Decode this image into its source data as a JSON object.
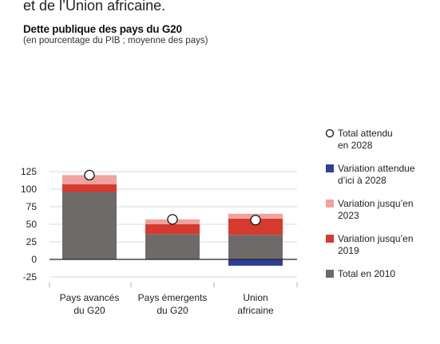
{
  "header": {
    "heading_line": "et de l’Union africaine.",
    "title": "Dette publique des pays du G20",
    "subtitle": "(en pourcentage du PIB ; moyenne des pays)"
  },
  "colors": {
    "total_2010": "#6e6a69",
    "variation_2019": "#d63a2f",
    "variation_2023": "#f0a39c",
    "variation_2028": "#2f3e96",
    "total_2028_marker_fill": "#ffffff",
    "total_2028_marker_stroke": "#111111"
  },
  "chart_data": {
    "type": "bar",
    "stacked": true,
    "categories": [
      [
        "Pays avancés",
        "du G20"
      ],
      [
        "Pays émergents",
        "du G20"
      ],
      [
        "Union",
        "africaine"
      ]
    ],
    "ylim": [
      -25,
      125
    ],
    "yticks": [
      -25,
      0,
      25,
      50,
      75,
      100,
      125
    ],
    "grid": true,
    "legend_position": "right",
    "series": [
      {
        "key": "total_2010",
        "name": [
          "Total en 2010"
        ],
        "values": [
          96,
          36,
          35
        ]
      },
      {
        "key": "variation_2019",
        "name": [
          "Variation jusqu’en",
          "2019"
        ],
        "values": [
          11,
          14,
          23
        ]
      },
      {
        "key": "variation_2023",
        "name": [
          "Variation jusqu’en",
          "2023"
        ],
        "values": [
          13,
          7,
          7
        ]
      },
      {
        "key": "variation_2028",
        "name": [
          "Variation attendue",
          "d’ici à  2028"
        ],
        "values": [
          0,
          0,
          -9
        ]
      }
    ],
    "markers": {
      "name": [
        "Total attendu",
        "en 2028"
      ],
      "values": [
        120,
        57,
        56
      ]
    },
    "legend_order": [
      "markers",
      "variation_2028",
      "variation_2023",
      "variation_2019",
      "total_2010"
    ]
  }
}
